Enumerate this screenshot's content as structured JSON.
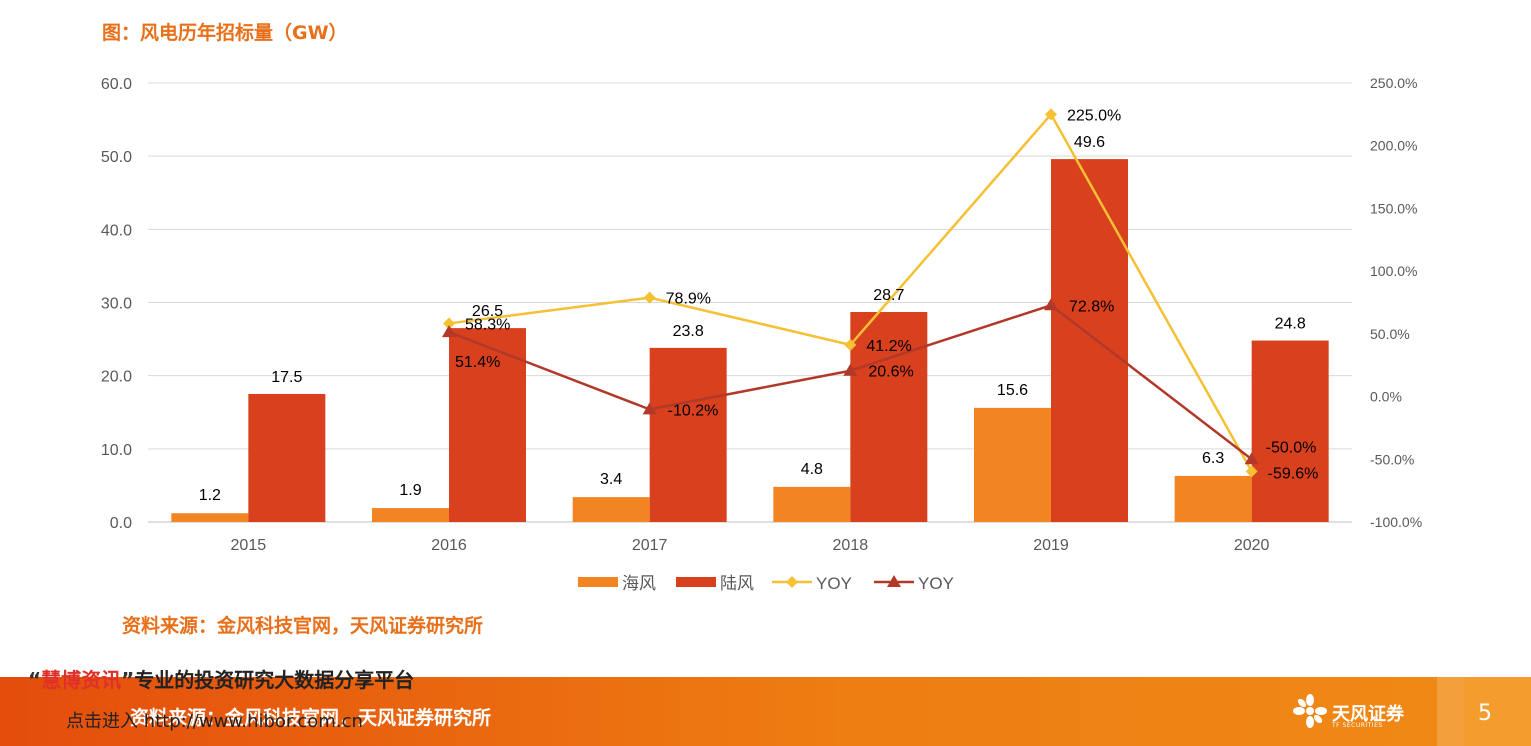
{
  "page": {
    "title": "图：风电历年招标量（GW）",
    "source": "资料来源：金风科技官网，天风证券研究所",
    "watermark_open_quote": "“",
    "watermark_brand": "慧博资讯",
    "watermark_close_quote": "”",
    "watermark_text": "专业的投资研究大数据分享平台",
    "footer_source": "资料来源：金风科技官网，天风证券研究所",
    "footer_link": "点击进入 http://www.hibor.com.cn",
    "logo_text": "天风证券",
    "logo_sub": "TF SECURITIES",
    "page_number": "5"
  },
  "colors": {
    "offshore": "#f28522",
    "onshore": "#d9401e",
    "yoy_offshore": "#f5c034",
    "yoy_onshore": "#b2392a",
    "grid": "#d9d9d9",
    "axis_text": "#595959"
  },
  "chart_data": {
    "type": "bar",
    "categories": [
      "2015",
      "2016",
      "2017",
      "2018",
      "2019",
      "2020"
    ],
    "series": [
      {
        "name": "海风",
        "type": "bar",
        "axis": "left",
        "values": [
          1.2,
          1.9,
          3.4,
          4.8,
          15.6,
          6.3
        ],
        "labels": [
          "1.2",
          "1.9",
          "3.4",
          "4.8",
          "15.6",
          "6.3"
        ]
      },
      {
        "name": "陆风",
        "type": "bar",
        "axis": "left",
        "values": [
          17.5,
          26.5,
          23.8,
          28.7,
          49.6,
          24.8
        ],
        "labels": [
          "17.5",
          "26.5",
          "23.8",
          "28.7",
          "49.6",
          "24.8"
        ]
      },
      {
        "name": "YOY",
        "type": "line",
        "marker": "diamond",
        "axis": "right",
        "values": [
          null,
          58.3,
          78.9,
          41.2,
          225.0,
          -59.6
        ],
        "labels": [
          "",
          "58.3%",
          "78.9%",
          "41.2%",
          "225.0%",
          "-59.6%"
        ]
      },
      {
        "name": "YOY",
        "type": "line",
        "marker": "triangle",
        "axis": "right",
        "values": [
          null,
          51.4,
          -10.2,
          20.6,
          72.8,
          -50.0
        ],
        "labels": [
          "",
          "51.4%",
          "-10.2%",
          "20.6%",
          "72.8%",
          "-50.0%"
        ]
      }
    ],
    "y_left": {
      "min": 0,
      "max": 60,
      "ticks": [
        "0.0",
        "10.0",
        "20.0",
        "30.0",
        "40.0",
        "50.0",
        "60.0"
      ]
    },
    "y_right": {
      "min": -100,
      "max": 250,
      "ticks": [
        "-100.0%",
        "-50.0%",
        "0.0%",
        "50.0%",
        "100.0%",
        "150.0%",
        "200.0%",
        "250.0%"
      ]
    },
    "grid": true,
    "legend": "bottom"
  }
}
